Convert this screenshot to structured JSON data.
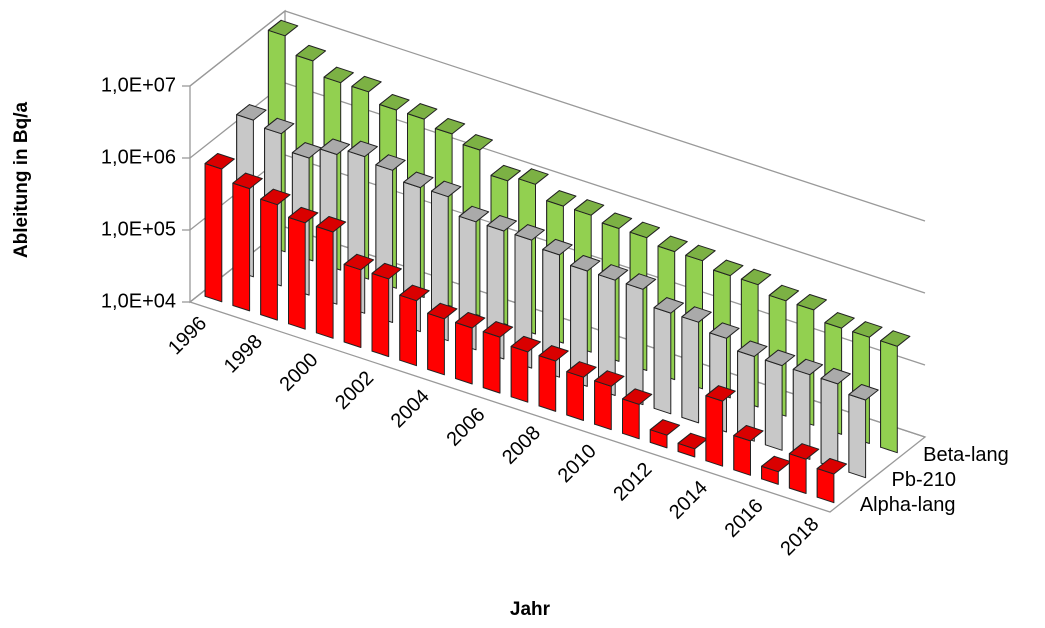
{
  "chart_data": {
    "type": "bar3d",
    "y_label": "Ableitung in Bq/a",
    "x_label": "Jahr",
    "log_scale": true,
    "grid": true,
    "categories": [
      "1996",
      null,
      "1998",
      null,
      "2000",
      null,
      "2002",
      null,
      "2004",
      null,
      "2006",
      null,
      "2008",
      null,
      "2010",
      null,
      "2012",
      null,
      "2014",
      null,
      "2016",
      null,
      "2018"
    ],
    "series": [
      {
        "name": "Alpha-lang",
        "color": "#ff0000",
        "values": [
          700000,
          500000,
          400000,
          300000,
          300000,
          120000,
          120000,
          80000,
          60000,
          60000,
          60000,
          50000,
          50000,
          40000,
          40000,
          30000,
          15000,
          13000,
          80000,
          30000,
          15000,
          30000,
          25000
        ]
      },
      {
        "name": "Pb-210",
        "color": "#c8c8c8",
        "values": [
          1500000,
          1300000,
          800000,
          1200000,
          1500000,
          1300000,
          1000000,
          1000000,
          600000,
          600000,
          600000,
          500000,
          400000,
          400000,
          400000,
          250000,
          250000,
          200000,
          150000,
          150000,
          150000,
          150000,
          120000
        ]
      },
      {
        "name": "Beta-lang",
        "color": "#92d050",
        "values": [
          10000000,
          6000000,
          4000000,
          4000000,
          3000000,
          3000000,
          2500000,
          2000000,
          1000000,
          1200000,
          800000,
          800000,
          700000,
          700000,
          600000,
          600000,
          500000,
          500000,
          400000,
          400000,
          300000,
          300000,
          300000
        ]
      }
    ],
    "ylim": [
      10000,
      10000000
    ],
    "yticks": [
      {
        "value": 10000,
        "label": "1,0E+04"
      },
      {
        "value": 100000,
        "label": "1,0E+05"
      },
      {
        "value": 1000000,
        "label": "1,0E+06"
      },
      {
        "value": 10000000,
        "label": "1,0E+07"
      }
    ]
  }
}
